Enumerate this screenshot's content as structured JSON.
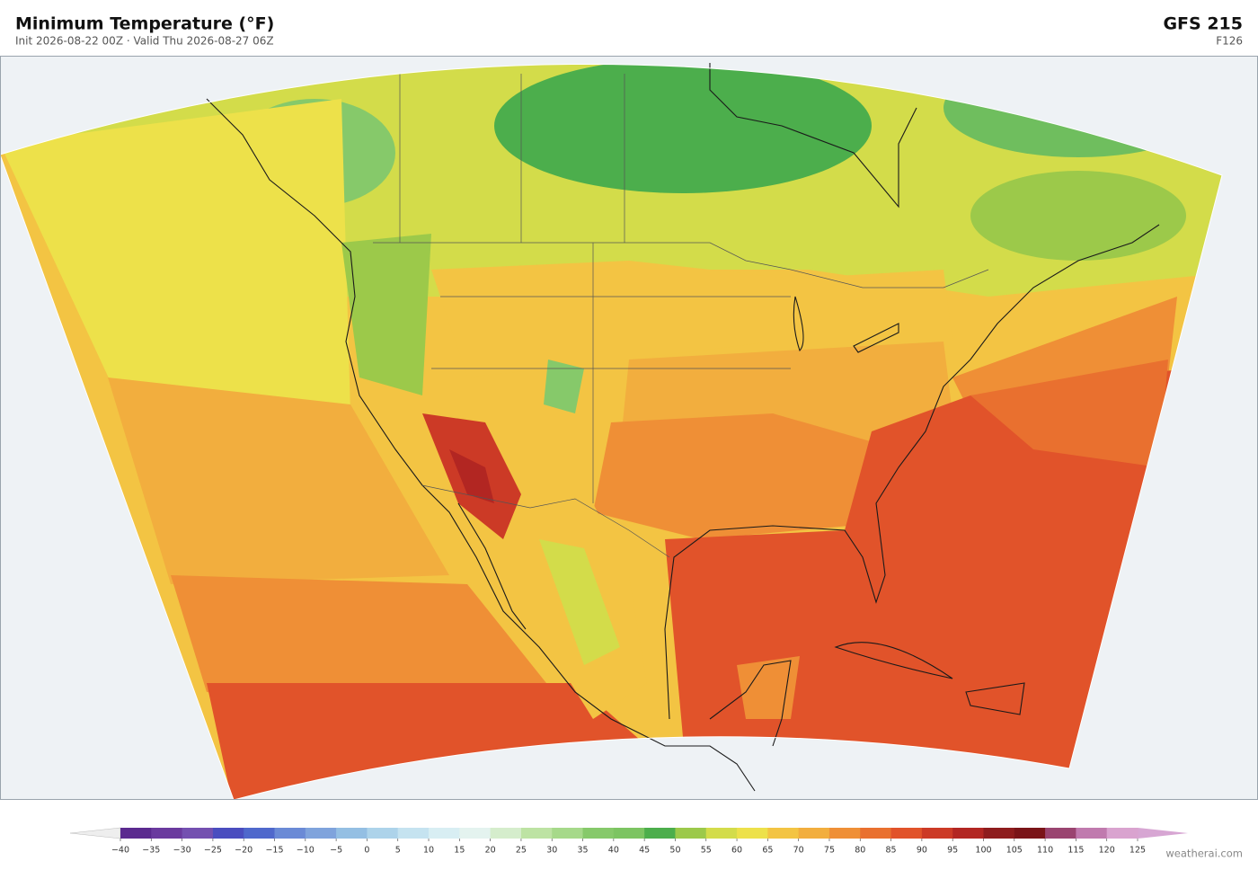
{
  "header": {
    "title": "Minimum Temperature  (°F)",
    "subtitle": "Init 2026-08-22 00Z  ·  Valid Thu 2026-08-27 06Z",
    "model": "GFS  215",
    "forecast_hour": "F126"
  },
  "colorbar": {
    "ticks": [
      "−40",
      "−35",
      "−30",
      "−25",
      "−20",
      "−15",
      "−10",
      "−5",
      "0",
      "5",
      "10",
      "15",
      "20",
      "25",
      "30",
      "35",
      "40",
      "45",
      "50",
      "55",
      "60",
      "65",
      "70",
      "75",
      "80",
      "85",
      "90",
      "95",
      "100",
      "105",
      "110",
      "115",
      "120",
      "125"
    ],
    "colors": [
      "#5b2a8f",
      "#6a3a9e",
      "#7450b0",
      "#4a4dbf",
      "#4f68cc",
      "#6a8ad6",
      "#7fa3dc",
      "#94bfe3",
      "#add3ea",
      "#c5e3f0",
      "#d8eef3",
      "#e4f3ef",
      "#d5edcc",
      "#bde3a3",
      "#a6d98a",
      "#86c96a",
      "#7cc462",
      "#4cae4c",
      "#9cc94a",
      "#d3dc4a",
      "#ede14a",
      "#f3c443",
      "#f2ae3e",
      "#ef8f36",
      "#e9702f",
      "#e1532a",
      "#cc3a26",
      "#b22622",
      "#8e1c1d",
      "#7a1418",
      "#9a4470",
      "#c07aae",
      "#d9a3cf"
    ],
    "extend_low_color": "#eeeeee",
    "extend_high_color": "#d7a6d3"
  },
  "footer": {
    "credit": "weatherai.com"
  }
}
